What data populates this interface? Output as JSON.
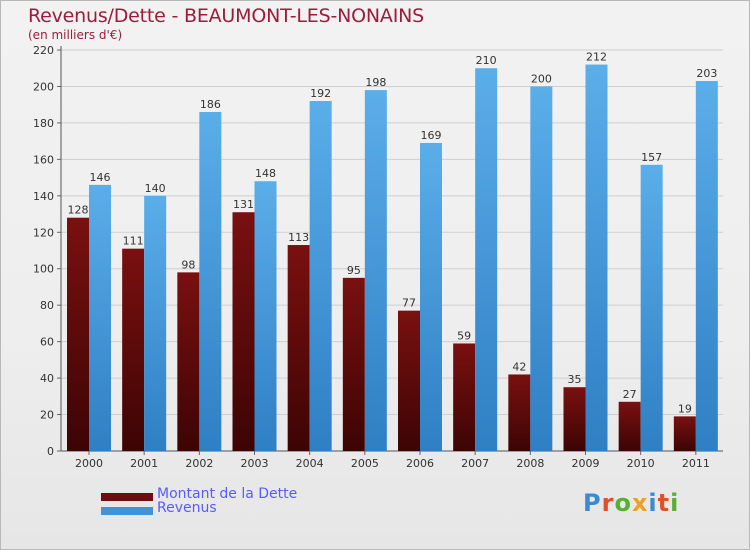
{
  "title": "Revenus/Dette - BEAUMONT-LES-NONAINS",
  "subtitle": "(en milliers d'€)",
  "brand": "Proxiti",
  "brand_colors": [
    "#3a8bd4",
    "#e2502a",
    "#58b030",
    "#f0a020",
    "#3a8bd4",
    "#e2502a",
    "#58b030"
  ],
  "colors": {
    "dette": "#7a1010",
    "dette_dark": "#3d0404",
    "revenus": "#5aaee9",
    "revenus_dark": "#2f7fc4",
    "title": "#9b1d3a",
    "legend_text": "#5a5aff"
  },
  "legend": [
    {
      "label": "Montant de la Dette",
      "color": "#6a0e0e"
    },
    {
      "label": "Revenus",
      "color": "#3f93d8"
    }
  ],
  "chart_data": {
    "type": "bar",
    "categories": [
      "2000",
      "2001",
      "2002",
      "2003",
      "2004",
      "2005",
      "2006",
      "2007",
      "2008",
      "2009",
      "2010",
      "2011"
    ],
    "series": [
      {
        "name": "Montant de la Dette",
        "values": [
          128,
          111,
          98,
          131,
          113,
          95,
          77,
          59,
          42,
          35,
          27,
          19
        ]
      },
      {
        "name": "Revenus",
        "values": [
          146,
          140,
          186,
          148,
          192,
          198,
          169,
          210,
          200,
          212,
          157,
          203
        ]
      }
    ],
    "ylim": [
      0,
      220
    ],
    "yticks": [
      0,
      20,
      40,
      60,
      80,
      100,
      120,
      140,
      160,
      180,
      200,
      220
    ],
    "grid": true,
    "legend_position": "bottom-left"
  }
}
